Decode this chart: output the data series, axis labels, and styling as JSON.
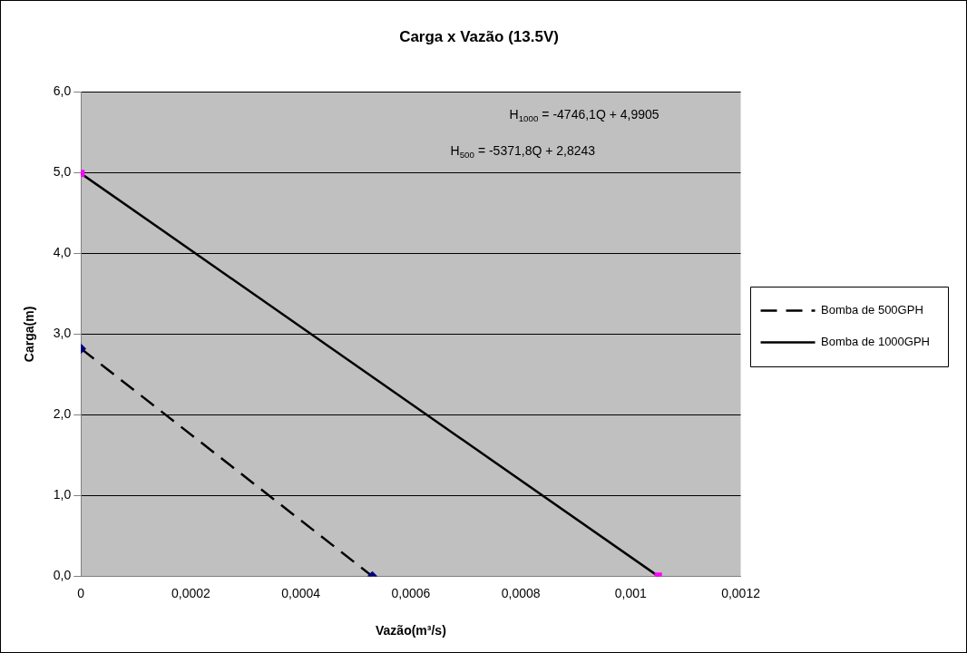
{
  "chart_data": {
    "type": "line",
    "title": "Carga x Vazão (13.5V)",
    "xlabel": "Vazão(m³/s)",
    "ylabel": "Carga(m)",
    "xlim": [
      0,
      0.0012
    ],
    "xticks": [
      {
        "value": 0,
        "label": "0"
      },
      {
        "value": 0.0002,
        "label": "0,0002"
      },
      {
        "value": 0.0004,
        "label": "0,0004"
      },
      {
        "value": 0.0006,
        "label": "0,0006"
      },
      {
        "value": 0.0008,
        "label": "0,0008"
      },
      {
        "value": 0.001,
        "label": "0,001"
      },
      {
        "value": 0.0012,
        "label": "0,0012"
      }
    ],
    "ylim": [
      0,
      6
    ],
    "yticks": [
      {
        "value": 0,
        "label": "0,0"
      },
      {
        "value": 1,
        "label": "1,0"
      },
      {
        "value": 2,
        "label": "2,0"
      },
      {
        "value": 3,
        "label": "3,0"
      },
      {
        "value": 4,
        "label": "4,0"
      },
      {
        "value": 5,
        "label": "5,0"
      },
      {
        "value": 6,
        "label": "6,0"
      }
    ],
    "grid": "y",
    "legend": "right",
    "series": [
      {
        "name": "Bomba de 500GPH",
        "color": "#000000",
        "colors": [
          "#000080",
          "#000080"
        ],
        "marker": "diamond",
        "line_style": "dashed",
        "x": [
          0,
          0.00053
        ],
        "values": [
          2.82,
          0
        ]
      },
      {
        "name": "Bomba de 1000GPH",
        "color": "#000000",
        "colors": [
          "#ff00ff",
          "#ff00ff"
        ],
        "marker": "square",
        "line_style": "solid",
        "x": [
          0,
          0.00105
        ],
        "values": [
          4.99,
          0
        ]
      }
    ],
    "annotations": [
      "H$_{1000}$ = -4746,1Q + 4,9905",
      "H$_{500}$ = -5371,8Q + 2,8243"
    ]
  }
}
